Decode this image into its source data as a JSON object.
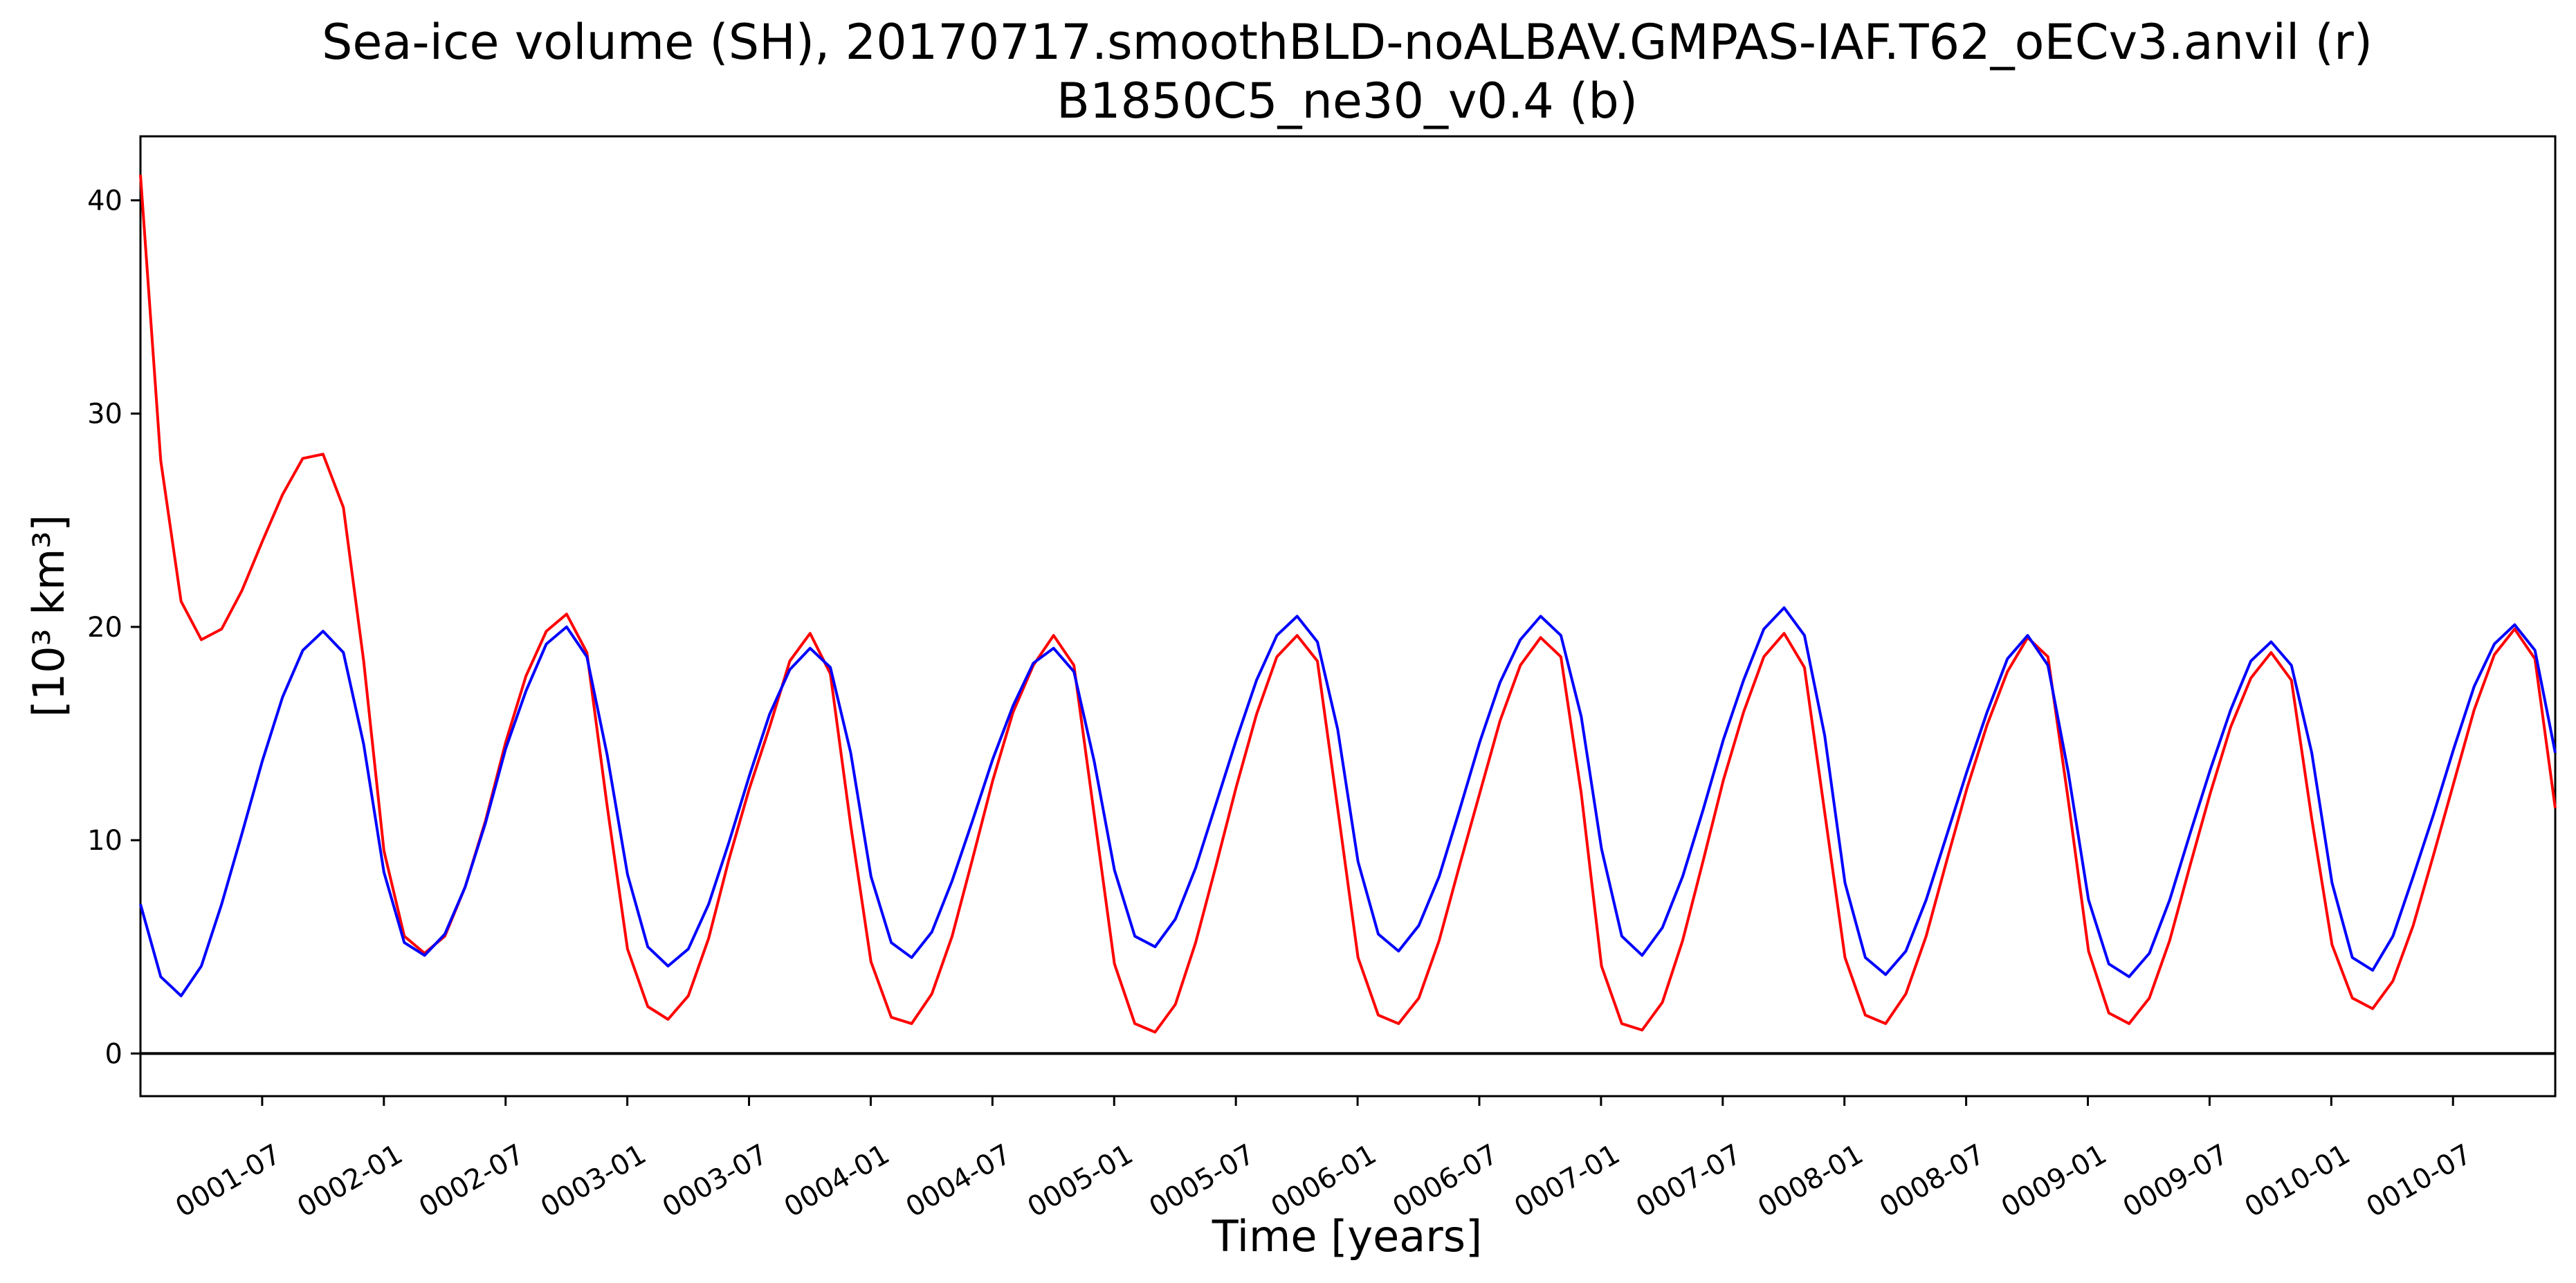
{
  "chart_data": {
    "type": "line",
    "title": "Sea-ice volume (SH), 20170717.smoothBLD-noALBAV.GMPAS-IAF.T62_oECv3.anvil (r)",
    "subtitle": "B1850C5_ne30_v0.4 (b)",
    "xlabel": "Time [years]",
    "ylabel": "[10³ km³]",
    "ylim": [
      -2,
      43
    ],
    "yticks": [
      0,
      10,
      20,
      30,
      40
    ],
    "xlim": [
      0.0,
      9.92
    ],
    "xticks": [
      {
        "label": "0001-07",
        "value": 0.5
      },
      {
        "label": "0002-01",
        "value": 1.0
      },
      {
        "label": "0002-07",
        "value": 1.5
      },
      {
        "label": "0003-01",
        "value": 2.0
      },
      {
        "label": "0003-07",
        "value": 2.5
      },
      {
        "label": "0004-01",
        "value": 3.0
      },
      {
        "label": "0004-07",
        "value": 3.5
      },
      {
        "label": "0005-01",
        "value": 4.0
      },
      {
        "label": "0005-07",
        "value": 4.5
      },
      {
        "label": "0006-01",
        "value": 5.0
      },
      {
        "label": "0006-07",
        "value": 5.5
      },
      {
        "label": "0007-01",
        "value": 6.0
      },
      {
        "label": "0007-07",
        "value": 6.5
      },
      {
        "label": "0008-01",
        "value": 7.0
      },
      {
        "label": "0008-07",
        "value": 7.5
      },
      {
        "label": "0009-01",
        "value": 8.0
      },
      {
        "label": "0009-07",
        "value": 8.5
      },
      {
        "label": "0010-01",
        "value": 9.0
      },
      {
        "label": "0010-07",
        "value": 9.5
      }
    ],
    "zero_line": true,
    "grid": false,
    "series": [
      {
        "label": "r",
        "color": "#ff0000",
        "values": [
          41.2,
          27.8,
          21.2,
          19.4,
          19.9,
          21.7,
          24.0,
          26.2,
          27.9,
          28.1,
          25.6,
          18.4,
          9.5,
          5.5,
          4.7,
          5.5,
          7.8,
          10.9,
          14.6,
          17.7,
          19.8,
          20.6,
          18.8,
          11.6,
          4.9,
          2.2,
          1.6,
          2.7,
          5.4,
          9.1,
          12.4,
          15.3,
          18.4,
          19.7,
          17.8,
          10.7,
          4.3,
          1.7,
          1.4,
          2.8,
          5.5,
          9.1,
          12.8,
          16.0,
          18.2,
          19.6,
          18.2,
          11.2,
          4.2,
          1.4,
          1.0,
          2.3,
          5.2,
          8.8,
          12.5,
          15.9,
          18.6,
          19.6,
          18.4,
          11.5,
          4.5,
          1.8,
          1.4,
          2.6,
          5.3,
          8.8,
          12.2,
          15.6,
          18.2,
          19.5,
          18.6,
          12.2,
          4.1,
          1.4,
          1.1,
          2.4,
          5.3,
          9.0,
          12.8,
          16.0,
          18.6,
          19.7,
          18.1,
          11.3,
          4.5,
          1.8,
          1.4,
          2.8,
          5.5,
          9.0,
          12.4,
          15.4,
          17.9,
          19.5,
          18.6,
          11.9,
          4.8,
          1.9,
          1.4,
          2.6,
          5.3,
          8.8,
          12.2,
          15.3,
          17.6,
          18.8,
          17.5,
          11.0,
          5.1,
          2.6,
          2.1,
          3.4,
          6.0,
          9.3,
          12.7,
          16.1,
          18.7,
          19.9,
          18.5,
          11.5
        ]
      },
      {
        "label": "b",
        "color": "#0000ff",
        "values": [
          7.0,
          3.6,
          2.7,
          4.1,
          7.0,
          10.3,
          13.7,
          16.7,
          18.9,
          19.8,
          18.8,
          14.5,
          8.5,
          5.2,
          4.6,
          5.6,
          7.8,
          10.8,
          14.3,
          17.0,
          19.2,
          20.0,
          18.6,
          14.0,
          8.4,
          5.0,
          4.1,
          4.9,
          7.0,
          9.9,
          13.0,
          15.9,
          18.0,
          19.0,
          18.1,
          14.1,
          8.3,
          5.2,
          4.5,
          5.7,
          8.1,
          10.9,
          13.8,
          16.3,
          18.3,
          19.0,
          17.9,
          13.7,
          8.6,
          5.5,
          5.0,
          6.3,
          8.7,
          11.7,
          14.7,
          17.5,
          19.6,
          20.5,
          19.3,
          15.2,
          9.0,
          5.6,
          4.8,
          6.0,
          8.3,
          11.4,
          14.6,
          17.4,
          19.4,
          20.5,
          19.6,
          15.8,
          9.6,
          5.5,
          4.6,
          5.9,
          8.3,
          11.4,
          14.7,
          17.5,
          19.9,
          20.9,
          19.6,
          14.9,
          8.0,
          4.5,
          3.7,
          4.8,
          7.2,
          10.2,
          13.2,
          16.0,
          18.5,
          19.6,
          18.2,
          13.2,
          7.2,
          4.2,
          3.6,
          4.7,
          7.2,
          10.3,
          13.3,
          16.1,
          18.4,
          19.3,
          18.2,
          14.1,
          8.0,
          4.5,
          3.9,
          5.5,
          8.3,
          11.2,
          14.3,
          17.2,
          19.2,
          20.1,
          18.9,
          14.1
        ]
      }
    ]
  }
}
